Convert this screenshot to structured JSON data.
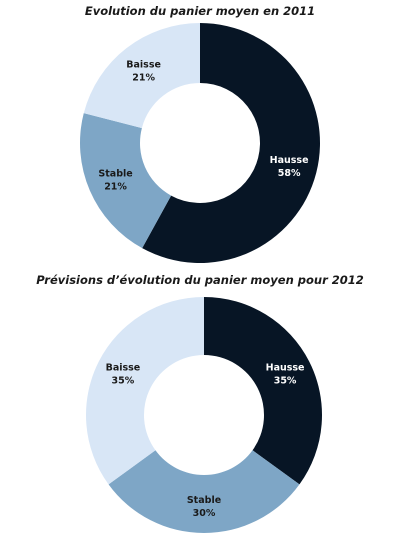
{
  "colors": {
    "hausse": "#071525",
    "stable": "#7ea6c6",
    "baisse": "#d8e6f6",
    "label_dark_bg": "#ffffff",
    "label_light_bg": "#1a1a1a",
    "title": "#1a1a1a"
  },
  "chart_data": [
    {
      "type": "pie",
      "style": "donut",
      "title": "Evolution du panier moyen en 2011",
      "start": "12 o'clock, clockwise",
      "slices": [
        {
          "label": "Hausse",
          "value": 58,
          "value_label": "58%",
          "color_key": "hausse"
        },
        {
          "label": "Stable",
          "value": 21,
          "value_label": "21%",
          "color_key": "stable"
        },
        {
          "label": "Baisse",
          "value": 21,
          "value_label": "21%",
          "color_key": "baisse"
        }
      ]
    },
    {
      "type": "pie",
      "style": "donut",
      "title": "Prévisions d’évolution du panier moyen pour 2012",
      "start": "12 o'clock, clockwise",
      "slices": [
        {
          "label": "Hausse",
          "value": 35,
          "value_label": "35%",
          "color_key": "hausse"
        },
        {
          "label": "Stable",
          "value": 30,
          "value_label": "30%",
          "color_key": "stable"
        },
        {
          "label": "Baisse",
          "value": 35,
          "value_label": "35%",
          "color_key": "baisse"
        }
      ]
    }
  ]
}
